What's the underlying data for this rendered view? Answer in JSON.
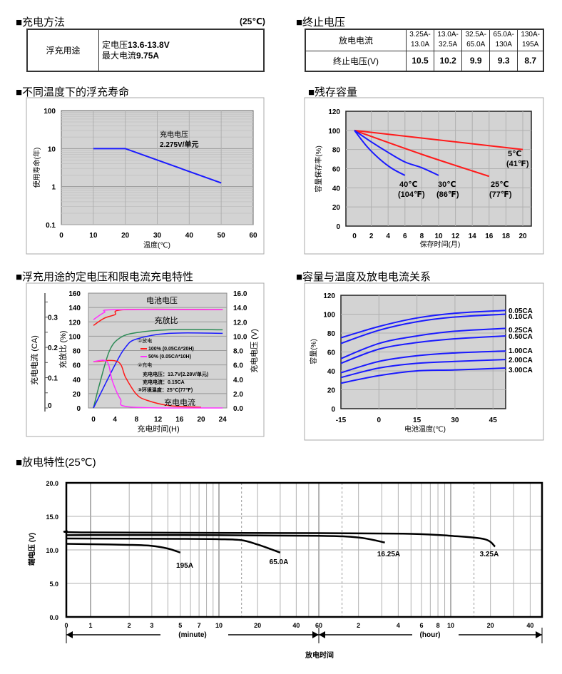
{
  "charging_method": {
    "title": "■充电方法",
    "temperature_note": "(25℃)",
    "usage": "浮充用途",
    "voltage_label": "定电压",
    "voltage_value": "13.6-13.8V",
    "current_label": "最大电流",
    "current_value": "9.75A"
  },
  "end_voltage": {
    "title": "■终止电压",
    "row1_label": "放电电流",
    "row2_label": "终止电压(V)",
    "currents": [
      [
        "3.25A-",
        "13.0A"
      ],
      [
        "13.0A-",
        "32.5A"
      ],
      [
        "32.5A-",
        "65.0A"
      ],
      [
        "65.0A-",
        "130A"
      ],
      [
        "130A-",
        "195A"
      ]
    ],
    "voltages": [
      "10.5",
      "10.2",
      "9.9",
      "9.3",
      "8.7"
    ]
  },
  "chart_data": [
    {
      "title": "■不同温度下的浮充寿命",
      "type": "line",
      "xlabel": "温度(℃)",
      "ylabel": "使用寿命(年)",
      "xlim": [
        0,
        60
      ],
      "ylim": [
        0.1,
        100
      ],
      "yscale": "log",
      "xticks": [
        0,
        10,
        20,
        30,
        40,
        50,
        60
      ],
      "yticks": [
        "100",
        "10",
        "1",
        "0.1"
      ],
      "annotation": [
        "充电电压",
        "2.275V/单元"
      ],
      "grid": true,
      "series": [
        {
          "color": "#1a1aff",
          "points": [
            [
              10,
              10
            ],
            [
              20,
              10
            ],
            [
              50,
              1.25
            ]
          ]
        }
      ]
    },
    {
      "title": "■残存容量",
      "type": "line",
      "xlabel": "保存时间(月)",
      "ylabel": "容量保存率(%)",
      "xlim": [
        -1,
        21
      ],
      "ylim": [
        0,
        120
      ],
      "xticks": [
        0,
        2,
        4,
        6,
        8,
        10,
        12,
        14,
        16,
        18,
        20
      ],
      "yticks": [
        0,
        20,
        40,
        60,
        80,
        100,
        120
      ],
      "grid": true,
      "series": [
        {
          "name": "5℃",
          "name2": "(41℉)",
          "color": "#ff1a1a",
          "points": [
            [
              0,
              100
            ],
            [
              20,
              80
            ]
          ]
        },
        {
          "name": "25℃",
          "name2": "(77℉)",
          "color": "#ff1a1a",
          "points": [
            [
              0,
              100
            ],
            [
              8,
              75
            ],
            [
              16,
              52
            ]
          ]
        },
        {
          "name": "30℃",
          "name2": "(86℉)",
          "color": "#1a1aff",
          "points": [
            [
              0,
              100
            ],
            [
              2,
              88
            ],
            [
              4,
              77
            ],
            [
              6,
              67
            ],
            [
              8,
              61
            ],
            [
              10,
              53
            ]
          ]
        },
        {
          "name": "40℃",
          "name2": "(104℉)",
          "color": "#1a1aff",
          "points": [
            [
              0,
              100
            ],
            [
              1.5,
              83
            ],
            [
              3,
              70
            ],
            [
              4.5,
              60
            ],
            [
              6,
              53
            ]
          ]
        }
      ]
    },
    {
      "title": "■浮充用途的定电压和限电流充电特性",
      "type": "line",
      "xlabel": "充电时间(H)",
      "ylabel_left_outer": "充电电流 (CA)",
      "ylabel_left": "充放比 (%)",
      "ylabel_right": "充电电压 (V)",
      "xlim": [
        -1,
        24.5
      ],
      "ylim": [
        0,
        160
      ],
      "ylim_right": [
        0,
        16
      ],
      "ylim_current": [
        0,
        0.35
      ],
      "xticks": [
        0,
        4,
        8,
        12,
        16,
        20,
        24
      ],
      "yticks": [
        0,
        20,
        40,
        60,
        80,
        100,
        120,
        140,
        160
      ],
      "yticks_right": [
        "0.0",
        "2.0",
        "4.0",
        "6.0",
        "8.0",
        "10.0",
        "12.0",
        "14.0",
        "16.0"
      ],
      "yticks_current": [
        0,
        0.1,
        0.2,
        0.3
      ],
      "annotations": {
        "voltage": "电池电压",
        "ratio": "充放比",
        "current": "充电电流"
      },
      "legend": {
        "discharge": "①放电",
        "d100": "100% (0.05CA*20H)",
        "d50": "50% (0.05CA*10H)",
        "charge": "②充电",
        "charge_voltage": "充电电压：13.7V(2.28V/单元)",
        "charge_current": "充电电流：0.15CA",
        "ambient": "③环境温度：25℃(77℉)"
      },
      "colors": {
        "d100": "#ff1a1a",
        "d50": "#ff33ff"
      },
      "series": [
        {
          "kind": "voltage",
          "unit": "V",
          "color": "#ff1a1a",
          "points": [
            [
              0,
              11.5
            ],
            [
              2,
              12.5
            ],
            [
              4,
              13.0
            ],
            [
              6,
              13.7
            ],
            [
              24,
              13.7
            ]
          ]
        },
        {
          "kind": "voltage",
          "unit": "V",
          "color": "#ff33ff",
          "points": [
            [
              0,
              12.3
            ],
            [
              2,
              13.3
            ],
            [
              4,
              13.7
            ],
            [
              24,
              13.7
            ]
          ]
        },
        {
          "kind": "ratio",
          "unit": "%",
          "color": "#2e8b57",
          "points": [
            [
              0,
              0
            ],
            [
              1.2,
              35
            ],
            [
              3,
              80
            ],
            [
              5,
              98
            ],
            [
              8,
              105
            ],
            [
              14,
              109
            ],
            [
              24,
              109
            ]
          ]
        },
        {
          "kind": "ratio",
          "unit": "%",
          "color": "#1a1aff",
          "points": [
            [
              0,
              0
            ],
            [
              4,
              60
            ],
            [
              6,
              85
            ],
            [
              8,
              96
            ],
            [
              14,
              104
            ],
            [
              24,
              104
            ]
          ]
        },
        {
          "kind": "current",
          "unit": "CA",
          "color": "#ff1a1a",
          "points": [
            [
              0,
              0.153
            ],
            [
              4.5,
              0.153
            ],
            [
              6,
              0.1
            ],
            [
              8,
              0.045
            ],
            [
              10,
              0.025
            ],
            [
              14,
              0.008
            ],
            [
              20,
              0.002
            ]
          ]
        },
        {
          "kind": "current",
          "unit": "CA",
          "color": "#ff33ff",
          "points": [
            [
              0,
              0.153
            ],
            [
              2.5,
              0.153
            ],
            [
              3.5,
              0.09
            ],
            [
              5,
              0.03
            ],
            [
              7,
              0.003
            ],
            [
              24,
              0
            ]
          ]
        }
      ]
    },
    {
      "title": "■容量与温度及放电电流关系",
      "type": "line",
      "xlabel": "电池温度(℃)",
      "ylabel": "容量(%)",
      "xlim": [
        -15,
        50
      ],
      "ylim": [
        0,
        120
      ],
      "xticks": [
        -15,
        0,
        15,
        30,
        45
      ],
      "yticks": [
        0,
        20,
        40,
        60,
        80,
        100,
        120
      ],
      "grid": true,
      "series": [
        {
          "name": "0.05CA",
          "color": "#1a1aff",
          "points": [
            [
              -15,
              75
            ],
            [
              0,
              87
            ],
            [
              15,
              96
            ],
            [
              30,
              101
            ],
            [
              50,
              104
            ]
          ]
        },
        {
          "name": "0.10CA",
          "color": "#1a1aff",
          "points": [
            [
              -15,
              69
            ],
            [
              0,
              83
            ],
            [
              15,
              92
            ],
            [
              30,
              97
            ],
            [
              50,
              100
            ]
          ]
        },
        {
          "name": "0.25CA",
          "color": "#1a1aff",
          "points": [
            [
              -15,
              53
            ],
            [
              0,
              69
            ],
            [
              15,
              77
            ],
            [
              30,
              82
            ],
            [
              50,
              85
            ]
          ]
        },
        {
          "name": "0.50CA",
          "color": "#1a1aff",
          "points": [
            [
              -15,
              48
            ],
            [
              0,
              63
            ],
            [
              15,
              70
            ],
            [
              30,
              74
            ],
            [
              50,
              77
            ]
          ]
        },
        {
          "name": "1.00CA",
          "color": "#1a1aff",
          "points": [
            [
              -15,
              38
            ],
            [
              0,
              50
            ],
            [
              15,
              56
            ],
            [
              30,
              59
            ],
            [
              50,
              61
            ]
          ]
        },
        {
          "name": "2.00CA",
          "color": "#1a1aff",
          "points": [
            [
              -15,
              33
            ],
            [
              0,
              43
            ],
            [
              15,
              48
            ],
            [
              30,
              50
            ],
            [
              50,
              52
            ]
          ]
        },
        {
          "name": "3.00CA",
          "color": "#1a1aff",
          "points": [
            [
              -15,
              27
            ],
            [
              0,
              35
            ],
            [
              15,
              40
            ],
            [
              30,
              41
            ],
            [
              50,
              43
            ]
          ]
        }
      ]
    },
    {
      "title": "■放电特性(25℃)",
      "type": "line",
      "xlabel": "放电时间",
      "ylabel": "端电压 (V)",
      "xunit_minute": "(minute)",
      "xunit_hour": "(hour)",
      "xscale": "log (minutes then hours)",
      "ylim": [
        0,
        20
      ],
      "yticks": [
        "0.0",
        "5.0",
        "10.0",
        "15.0",
        "20.0"
      ],
      "xticks_minute": [
        0,
        1,
        2,
        3,
        5,
        7,
        10,
        20,
        40,
        60
      ],
      "xticks_hour": [
        2,
        4,
        6,
        8,
        10,
        20,
        40
      ],
      "grid": true,
      "series": [
        {
          "name": "195A",
          "color": "#000000",
          "points_minutes": [
            [
              0,
              10.9
            ],
            [
              1,
              10.85
            ],
            [
              2,
              10.75
            ],
            [
              3,
              10.6
            ],
            [
              4,
              10.2
            ],
            [
              5,
              9.6
            ]
          ]
        },
        {
          "name": "65.0A",
          "color": "#000000",
          "points_minutes": [
            [
              0,
              11.7
            ],
            [
              5,
              11.65
            ],
            [
              10,
              11.6
            ],
            [
              15,
              11.45
            ],
            [
              20,
              10.8
            ],
            [
              30,
              9.6
            ]
          ]
        },
        {
          "name": "16.25A",
          "color": "#000000",
          "points_minutes": [
            [
              0,
              12.2
            ],
            [
              10,
              12.2
            ],
            [
              60,
              12.1
            ],
            [
              120,
              11.85
            ],
            [
              190,
              11.1
            ]
          ]
        },
        {
          "name": "3.25A",
          "color": "#000000",
          "points_minutes": [
            [
              0,
              12.8
            ],
            [
              1,
              12.6
            ],
            [
              60,
              12.5
            ],
            [
              300,
              12.4
            ],
            [
              600,
              12.1
            ],
            [
              1080,
              11.6
            ],
            [
              1300,
              10.5
            ]
          ]
        }
      ]
    }
  ]
}
